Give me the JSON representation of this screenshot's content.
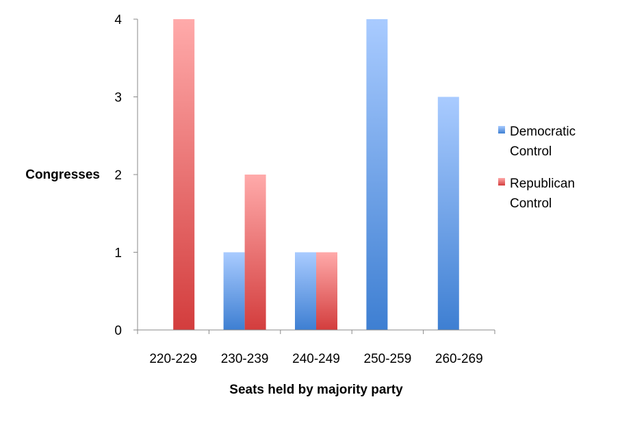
{
  "chart_data": {
    "type": "bar",
    "categories": [
      "220-229",
      "230-239",
      "240-249",
      "250-259",
      "260-269"
    ],
    "series": [
      {
        "name": "Democratic Control",
        "name_lines": [
          "Democratic",
          "Control"
        ],
        "values": [
          0,
          1,
          1,
          4,
          3
        ],
        "color": "#4a86d8"
      },
      {
        "name": "Republican Control",
        "name_lines": [
          "Republican",
          "Control"
        ],
        "values": [
          4,
          2,
          1,
          0,
          0
        ],
        "color": "#e05252"
      }
    ],
    "title": "",
    "xlabel": "Seats held by majority party",
    "ylabel": "Congresses",
    "ylim": [
      0,
      4
    ],
    "yticks": [
      0,
      1,
      2,
      3,
      4
    ],
    "grid": false,
    "legend": "right"
  }
}
